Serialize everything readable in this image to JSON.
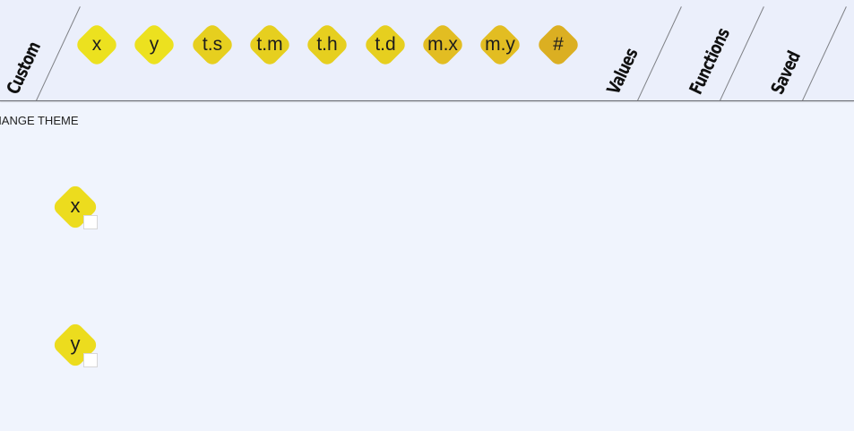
{
  "colors": {
    "chip_x": "#ece11f",
    "chip_y": "#ece11f",
    "chip_ts": "#e6cf1f",
    "chip_tm": "#e6cf1f",
    "chip_th": "#e6cf1f",
    "chip_td": "#e6cf1f",
    "chip_mx": "#e2bd22",
    "chip_my": "#e2bd22",
    "chip_hash": "#dbaf22",
    "block": "#ecdc1e",
    "handle": "#ffffff"
  },
  "tabs": {
    "custom": "Custom",
    "values": "Values",
    "functions": "Functions",
    "saved": "Saved"
  },
  "chips": {
    "x": "x",
    "y": "y",
    "ts": "t.s",
    "tm": "t.m",
    "th": "t.h",
    "td": "t.d",
    "mx": "m.x",
    "my": "m.y",
    "hash": "#"
  },
  "theme_button": "CHANGE THEME",
  "blocks": {
    "x": "x",
    "y": "y"
  }
}
